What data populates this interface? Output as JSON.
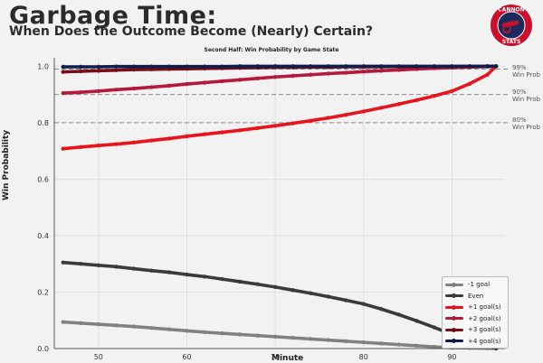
{
  "header": {
    "title": "Garbage Time:",
    "subtitle": "When Does the Outcome Become (Nearly) Certain?"
  },
  "logo": {
    "top_text": "CANNON",
    "bottom_text": "STATS",
    "colors": {
      "ring": "#c8102e",
      "inner": "#1d2b5c"
    }
  },
  "ref_lines": [
    {
      "y": 0.99,
      "line1": "99%",
      "line2": "Win Prob"
    },
    {
      "y": 0.9,
      "line1": "90%",
      "line2": "Win Prob"
    },
    {
      "y": 0.8,
      "line1": "80%",
      "line2": "Win Prob"
    }
  ],
  "chart_data": {
    "type": "line",
    "title": "Second Half: Win Probability by Game State",
    "xlabel": "Minute",
    "ylabel": "Win Probability",
    "xlim": [
      45,
      96
    ],
    "ylim": [
      0,
      1.03
    ],
    "xticks": [
      50,
      60,
      70,
      80,
      90
    ],
    "yticks": [
      0.0,
      0.2,
      0.4,
      0.6,
      0.8,
      1.0
    ],
    "xtick_labels": [
      "50",
      "60",
      "70",
      "80",
      "90"
    ],
    "ytick_labels": [
      "0.0",
      "0.2",
      "0.4",
      "0.6",
      "0.8",
      "1.0"
    ],
    "grid": true,
    "legend": "lower-right",
    "x": [
      46,
      48,
      50,
      52,
      54,
      56,
      58,
      60,
      62,
      64,
      66,
      68,
      70,
      72,
      74,
      76,
      78,
      80,
      82,
      84,
      86,
      88,
      90,
      92,
      94,
      95
    ],
    "series": [
      {
        "name": "-1 goal",
        "color": "#808080",
        "values": [
          0.094,
          0.09,
          0.086,
          0.082,
          0.078,
          0.073,
          0.068,
          0.063,
          0.058,
          0.054,
          0.05,
          0.046,
          0.042,
          0.038,
          0.034,
          0.03,
          0.026,
          0.022,
          0.018,
          0.014,
          0.01,
          0.006,
          0.003,
          0.002,
          0.001,
          0.001
        ]
      },
      {
        "name": "Even",
        "color": "#3a3a3a",
        "values": [
          0.305,
          0.3,
          0.295,
          0.29,
          0.283,
          0.276,
          0.27,
          0.262,
          0.255,
          0.246,
          0.237,
          0.228,
          0.218,
          0.207,
          0.196,
          0.184,
          0.171,
          0.158,
          0.14,
          0.12,
          0.098,
          0.075,
          0.05,
          0.03,
          0.01,
          0.0
        ]
      },
      {
        "name": "+1 goal(s)",
        "color": "#e8141c",
        "values": [
          0.708,
          0.714,
          0.719,
          0.724,
          0.73,
          0.737,
          0.744,
          0.752,
          0.759,
          0.766,
          0.773,
          0.781,
          0.789,
          0.798,
          0.807,
          0.817,
          0.828,
          0.84,
          0.853,
          0.866,
          0.88,
          0.895,
          0.912,
          0.938,
          0.97,
          1.0
        ]
      },
      {
        "name": "+2 goal(s)",
        "color": "#b5183a",
        "values": [
          0.905,
          0.908,
          0.912,
          0.917,
          0.921,
          0.926,
          0.931,
          0.937,
          0.942,
          0.947,
          0.952,
          0.957,
          0.962,
          0.966,
          0.97,
          0.974,
          0.977,
          0.981,
          0.984,
          0.987,
          0.99,
          0.993,
          0.995,
          0.997,
          0.999,
          1.0
        ]
      },
      {
        "name": "+3 goal(s)",
        "color": "#7a0c18",
        "values": [
          0.98,
          0.982,
          0.984,
          0.986,
          0.988,
          0.989,
          0.99,
          0.991,
          0.992,
          0.993,
          0.994,
          0.995,
          0.996,
          0.996,
          0.997,
          0.997,
          0.998,
          0.998,
          0.998,
          0.999,
          0.999,
          0.999,
          0.999,
          1.0,
          1.0,
          1.0
        ]
      },
      {
        "name": "+4 goal(s)",
        "color": "#0f1d4d",
        "values": [
          0.998,
          0.998,
          0.998,
          0.999,
          0.999,
          0.999,
          0.999,
          0.999,
          0.999,
          0.999,
          1.0,
          1.0,
          1.0,
          1.0,
          1.0,
          1.0,
          1.0,
          1.0,
          1.0,
          1.0,
          1.0,
          1.0,
          1.0,
          1.0,
          1.0,
          1.0
        ]
      }
    ]
  }
}
